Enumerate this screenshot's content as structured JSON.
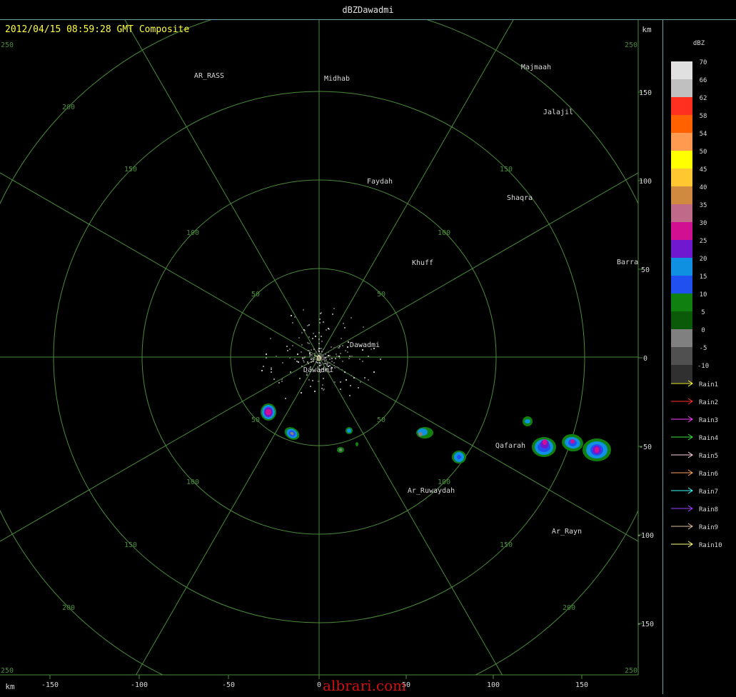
{
  "window": {
    "title": "dBZDawadmi"
  },
  "header": {
    "timestamp": "2012/04/15 08:59:28 GMT Composite"
  },
  "units": {
    "km_top": "km",
    "km_bottom": "km"
  },
  "axes": {
    "x_ticks": [
      "-150",
      "-100",
      "-50",
      "0",
      "50",
      "100",
      "150"
    ],
    "y_ticks": [
      "150",
      "100",
      "50",
      "0",
      "-50",
      "-100",
      "-150"
    ],
    "corner_labels": [
      "250",
      "250",
      "250",
      "250"
    ],
    "ring_labels_upper_left": [
      "50",
      "100",
      "150",
      "200"
    ],
    "ring_labels_upper_right": [
      "50",
      "100",
      "150"
    ],
    "ring_labels_lower_left": [
      "50",
      "100",
      "150",
      "200"
    ],
    "ring_labels_lower_right": [
      "50",
      "100",
      "150",
      "200"
    ]
  },
  "places": [
    {
      "name": "AR_RASS"
    },
    {
      "name": "Midhab"
    },
    {
      "name": "Majmaah"
    },
    {
      "name": "Jalajil"
    },
    {
      "name": "Faydah"
    },
    {
      "name": "Shaqra"
    },
    {
      "name": "Khuff"
    },
    {
      "name": "Barra"
    },
    {
      "name": "Dawadmi"
    },
    {
      "name": "Dawadmi"
    },
    {
      "name": "Qafarah"
    },
    {
      "name": "Ar_Ruwaydah"
    },
    {
      "name": "Ar_Rayn"
    }
  ],
  "site_marker": "D",
  "legend": {
    "title": "dBZ",
    "scale": [
      {
        "label": "70",
        "color": "#e0e0e0"
      },
      {
        "label": "66",
        "color": "#c0c0c0"
      },
      {
        "label": "62",
        "color": "#ff3020"
      },
      {
        "label": "58",
        "color": "#ff6000"
      },
      {
        "label": "54",
        "color": "#ff9a50"
      },
      {
        "label": "50",
        "color": "#ffff00"
      },
      {
        "label": "45",
        "color": "#ffc830"
      },
      {
        "label": "40",
        "color": "#d08a40"
      },
      {
        "label": "35",
        "color": "#c06a8a"
      },
      {
        "label": "30",
        "color": "#d01090"
      },
      {
        "label": "25",
        "color": "#7018d0"
      },
      {
        "label": "20",
        "color": "#1090e0"
      },
      {
        "label": "15",
        "color": "#2050f0"
      },
      {
        "label": "10",
        "color": "#108010"
      },
      {
        "label": "5",
        "color": "#0a5a0a"
      },
      {
        "label": "0",
        "color": "#808080"
      },
      {
        "label": "-5",
        "color": "#505050"
      },
      {
        "label": "-10",
        "color": "#303030"
      }
    ],
    "tracks": [
      {
        "label": "Rain1",
        "color": "#ffff40"
      },
      {
        "label": "Rain2",
        "color": "#ff3030"
      },
      {
        "label": "Rain3",
        "color": "#ff40ff"
      },
      {
        "label": "Rain4",
        "color": "#40e040"
      },
      {
        "label": "Rain5",
        "color": "#ffd0e0"
      },
      {
        "label": "Rain6",
        "color": "#ffa060"
      },
      {
        "label": "Rain7",
        "color": "#40ffff"
      },
      {
        "label": "Rain8",
        "color": "#a040ff"
      },
      {
        "label": "Rain9",
        "color": "#e0c0a0"
      },
      {
        "label": "Rain10",
        "color": "#ffff80"
      }
    ]
  },
  "colors": {
    "grid": "#4a8c3a",
    "border": "#6fa0a8",
    "header": "#ffff40",
    "watermark": "#d01010"
  },
  "watermark": "albrari.com"
}
